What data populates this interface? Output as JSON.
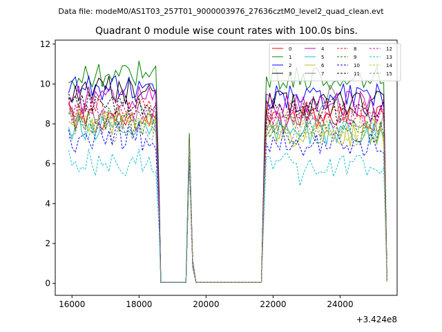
{
  "figure": {
    "suptitle": "Data file: modeM0/AS1T03_257T01_9000003976_27636cztM0_level2_quad_clean.evt"
  },
  "chart_data": {
    "type": "line",
    "title": "Quadrant 0 module wise count rates with 100.0s bins.",
    "xlabel": "",
    "ylabel": "",
    "x_offset_label": "+3.424e8",
    "xlim": [
      15500,
      25700
    ],
    "ylim": [
      -0.6,
      12.2
    ],
    "x_ticks": [
      16000,
      18000,
      20000,
      22000,
      24000
    ],
    "x_tick_labels": [
      "16000",
      "18000",
      "20000",
      "22000",
      "24000"
    ],
    "y_ticks": [
      0,
      2,
      4,
      6,
      8,
      10,
      12
    ],
    "y_tick_labels": [
      "0",
      "2",
      "4",
      "6",
      "8",
      "10",
      "12"
    ],
    "grid": false,
    "legend": {
      "placement": "top-right",
      "columns": 4
    },
    "segments": [
      {
        "start": 15900,
        "end": 18500,
        "step": 100
      },
      {
        "start": 18600,
        "end": 18700,
        "step": 100
      },
      {
        "start": 19400,
        "end": 19700,
        "step": 100
      },
      {
        "start": 21600,
        "end": 21700,
        "step": 100
      },
      {
        "start": 21800,
        "end": 25300,
        "step": 100
      }
    ],
    "spike_values": {
      "19400": 0,
      "19500": 7,
      "19600": 1.0,
      "19700": 0
    },
    "series": [
      {
        "name": "0",
        "color": "#ff0000",
        "dashed": false,
        "level1": 8.2,
        "level2": 8.3,
        "seed": 1
      },
      {
        "name": "1",
        "color": "#008000",
        "dashed": false,
        "level1": 10.4,
        "level2": 10.3,
        "seed": 2
      },
      {
        "name": "2",
        "color": "#0000ff",
        "dashed": false,
        "level1": 9.8,
        "level2": 9.4,
        "seed": 3
      },
      {
        "name": "3",
        "color": "#000000",
        "dashed": false,
        "level1": 9.5,
        "level2": 9.0,
        "seed": 4
      },
      {
        "name": "4",
        "color": "#c000c0",
        "dashed": false,
        "level1": 9.1,
        "level2": 9.0,
        "seed": 5
      },
      {
        "name": "5",
        "color": "#17becf",
        "dashed": false,
        "level1": 7.8,
        "level2": 7.6,
        "seed": 6
      },
      {
        "name": "6",
        "color": "#bcbd22",
        "dashed": false,
        "level1": 8.0,
        "level2": 7.5,
        "seed": 7
      },
      {
        "name": "7",
        "color": "#7f7f7f",
        "dashed": false,
        "level1": 8.3,
        "level2": 8.1,
        "seed": 8
      },
      {
        "name": "8",
        "color": "#ff0000",
        "dashed": true,
        "level1": 8.7,
        "level2": 8.5,
        "seed": 9
      },
      {
        "name": "9",
        "color": "#008000",
        "dashed": true,
        "level1": 8.1,
        "level2": 7.6,
        "seed": 10
      },
      {
        "name": "10",
        "color": "#0000ff",
        "dashed": true,
        "level1": 7.2,
        "level2": 7.0,
        "seed": 11
      },
      {
        "name": "11",
        "color": "#000000",
        "dashed": true,
        "level1": 8.9,
        "level2": 8.7,
        "seed": 12
      },
      {
        "name": "12",
        "color": "#c000c0",
        "dashed": true,
        "level1": 8.6,
        "level2": 8.4,
        "seed": 13
      },
      {
        "name": "13",
        "color": "#17becf",
        "dashed": true,
        "level1": 5.9,
        "level2": 5.9,
        "seed": 14
      },
      {
        "name": "14",
        "color": "#bcbd22",
        "dashed": true,
        "level1": 7.9,
        "level2": 7.7,
        "seed": 15
      },
      {
        "name": "15",
        "color": "#7f7f7f",
        "dashed": true,
        "level1": 7.6,
        "level2": 7.5,
        "seed": 16
      }
    ]
  }
}
